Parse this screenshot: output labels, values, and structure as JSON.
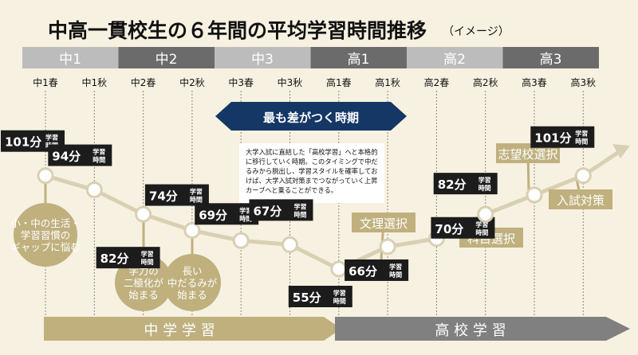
{
  "title": "中高一貫校生の６年間の平均学習時間推移",
  "subtitle": "（イメージ）",
  "years": [
    "中1",
    "中2",
    "中3",
    "高1",
    "高2",
    "高3"
  ],
  "terms": [
    "中1春",
    "中1秋",
    "中2春",
    "中2秋",
    "中3春",
    "中3秋",
    "高1春",
    "高1秋",
    "高2春",
    "高2秋",
    "高3春",
    "高3秋"
  ],
  "unit_label": "学習\n時間",
  "banner": "最も差がつく時期",
  "note": "大学入試に直結した「高校学習」へと本格的に移行していく時期。このタイミングで中だるみから脱出し、学習スタイルを確率しておけば、大学入試対策までつながっていく上昇カーブへと乗ることができる。",
  "callouts": [
    {
      "text": "小・中の生活・\n学習習慣の\nギャップに悩む"
    },
    {
      "text": "学力の\n二極化が\n始まる"
    },
    {
      "text": "長い\n中だるみが\n始まる"
    }
  ],
  "tags": [
    "文理選択",
    "科目選択",
    "志望校選択",
    "入試対策"
  ],
  "footer": {
    "middle": "中 学 学 習",
    "high": "高 校 学 習"
  },
  "colors": {
    "gray_bar": "#bcbcbc",
    "dark_bar": "#6b6b6b",
    "navy": "#143766",
    "gold": "#bfb07e",
    "line": "#d9d0b3",
    "label_bg": "#1c1c1c"
  },
  "chart_data": {
    "type": "line",
    "title": "中高一貫校生の６年間の平均学習時間推移",
    "categories": [
      "中1春",
      "中1秋",
      "中2春",
      "中2秋",
      "中3春",
      "中3秋",
      "高1春",
      "高1秋",
      "高2春",
      "高2秋",
      "高3春",
      "高3秋"
    ],
    "series": [
      {
        "values": [
          101,
          94,
          82,
          74,
          69,
          67,
          55,
          66,
          70,
          82,
          null,
          101
        ],
        "labels": [
          "101分",
          "94分",
          "82分",
          "74分",
          "69分",
          "67分",
          "55分",
          "66分",
          "70分",
          "82分",
          "",
          "101分"
        ]
      }
    ],
    "ylabel": "学習時間",
    "grid": true
  }
}
